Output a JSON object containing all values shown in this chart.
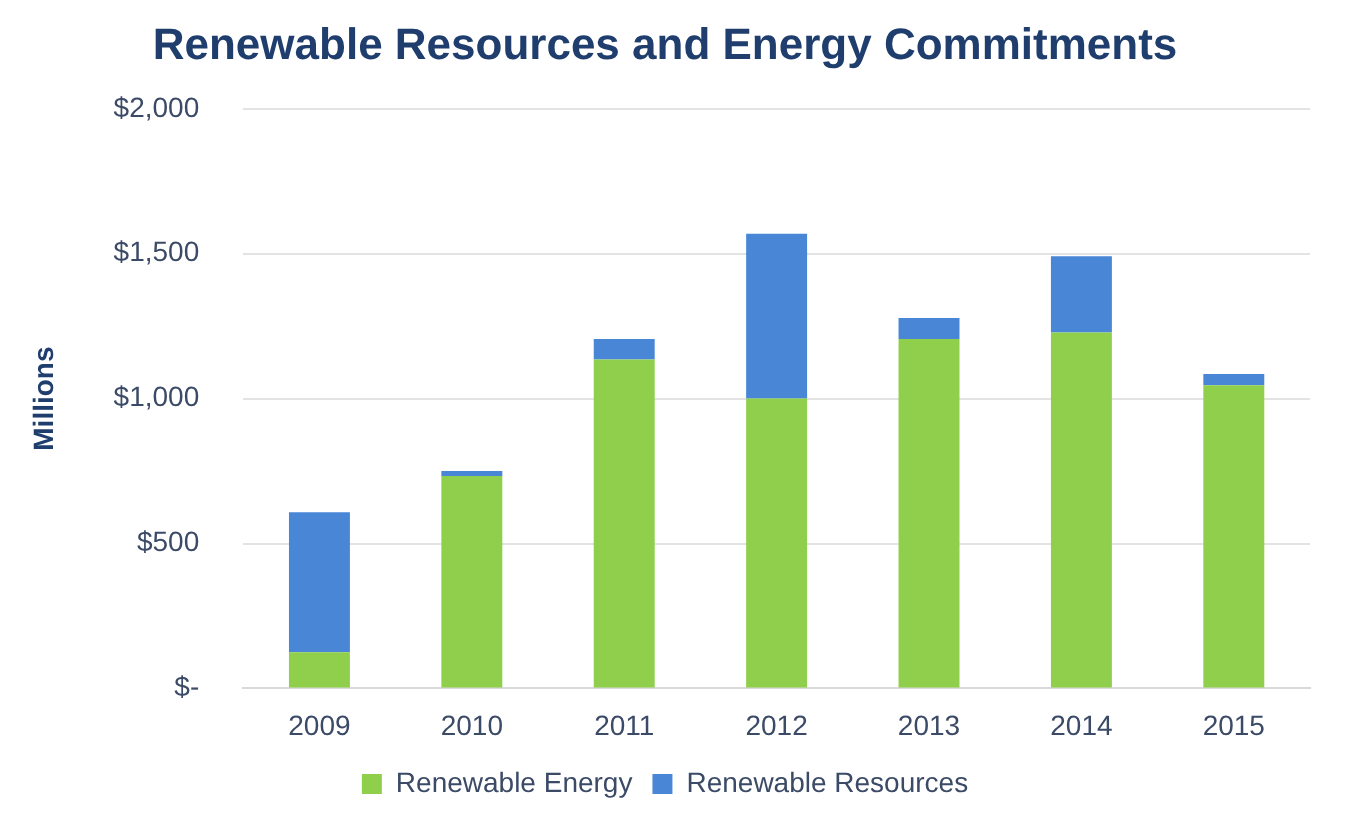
{
  "chart_data": {
    "type": "bar",
    "title": "Renewable Resources and Energy Commitments",
    "ylabel": "Millions",
    "categories": [
      "2009",
      "2010",
      "2011",
      "2012",
      "2013",
      "2014",
      "2015"
    ],
    "stacked": true,
    "series": [
      {
        "name": "Renewable Energy",
        "color": "#8fcf4c",
        "values": [
          125,
          733,
          1135,
          1000,
          1206,
          1228,
          1046
        ]
      },
      {
        "name": "Renewable Resources",
        "color": "#4a86d6",
        "values": [
          483,
          17,
          71,
          569,
          72,
          263,
          39
        ]
      }
    ],
    "ylim": [
      0,
      2000
    ],
    "yticks": [
      {
        "value": 0,
        "label": "$-"
      },
      {
        "value": 500,
        "label": "$500"
      },
      {
        "value": 1000,
        "label": "$1,000"
      },
      {
        "value": 1500,
        "label": "$1,500"
      },
      {
        "value": 2000,
        "label": "$2,000"
      }
    ],
    "grid": "y",
    "legend": "bottom"
  }
}
